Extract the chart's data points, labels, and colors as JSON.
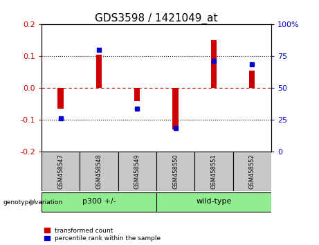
{
  "title": "GDS3598 / 1421049_at",
  "samples": [
    "GSM458547",
    "GSM458548",
    "GSM458549",
    "GSM458550",
    "GSM458551",
    "GSM458552"
  ],
  "red_values": [
    -0.065,
    0.105,
    -0.04,
    -0.13,
    0.15,
    0.055
  ],
  "blue_values": [
    -0.095,
    0.12,
    -0.065,
    -0.125,
    0.085,
    0.075
  ],
  "ylim": [
    -0.2,
    0.2
  ],
  "yticks_left": [
    -0.2,
    -0.1,
    0.0,
    0.1,
    0.2
  ],
  "yticks_right_labels": [
    "0",
    "25",
    "50",
    "75",
    "100%"
  ],
  "group_p300_label": "p300 +/-",
  "group_wt_label": "wild-type",
  "group_label_left": "genotype/variation",
  "green_color": "#90EE90",
  "gray_color": "#C8C8C8",
  "red_color": "#CC0000",
  "blue_color": "#0000CC",
  "bar_width": 0.15,
  "blue_marker_size": 5,
  "legend_red": "transformed count",
  "legend_blue": "percentile rank within the sample",
  "zero_line_color": "#CC0000",
  "title_fontsize": 11,
  "tick_fontsize": 8,
  "label_fontsize": 7
}
